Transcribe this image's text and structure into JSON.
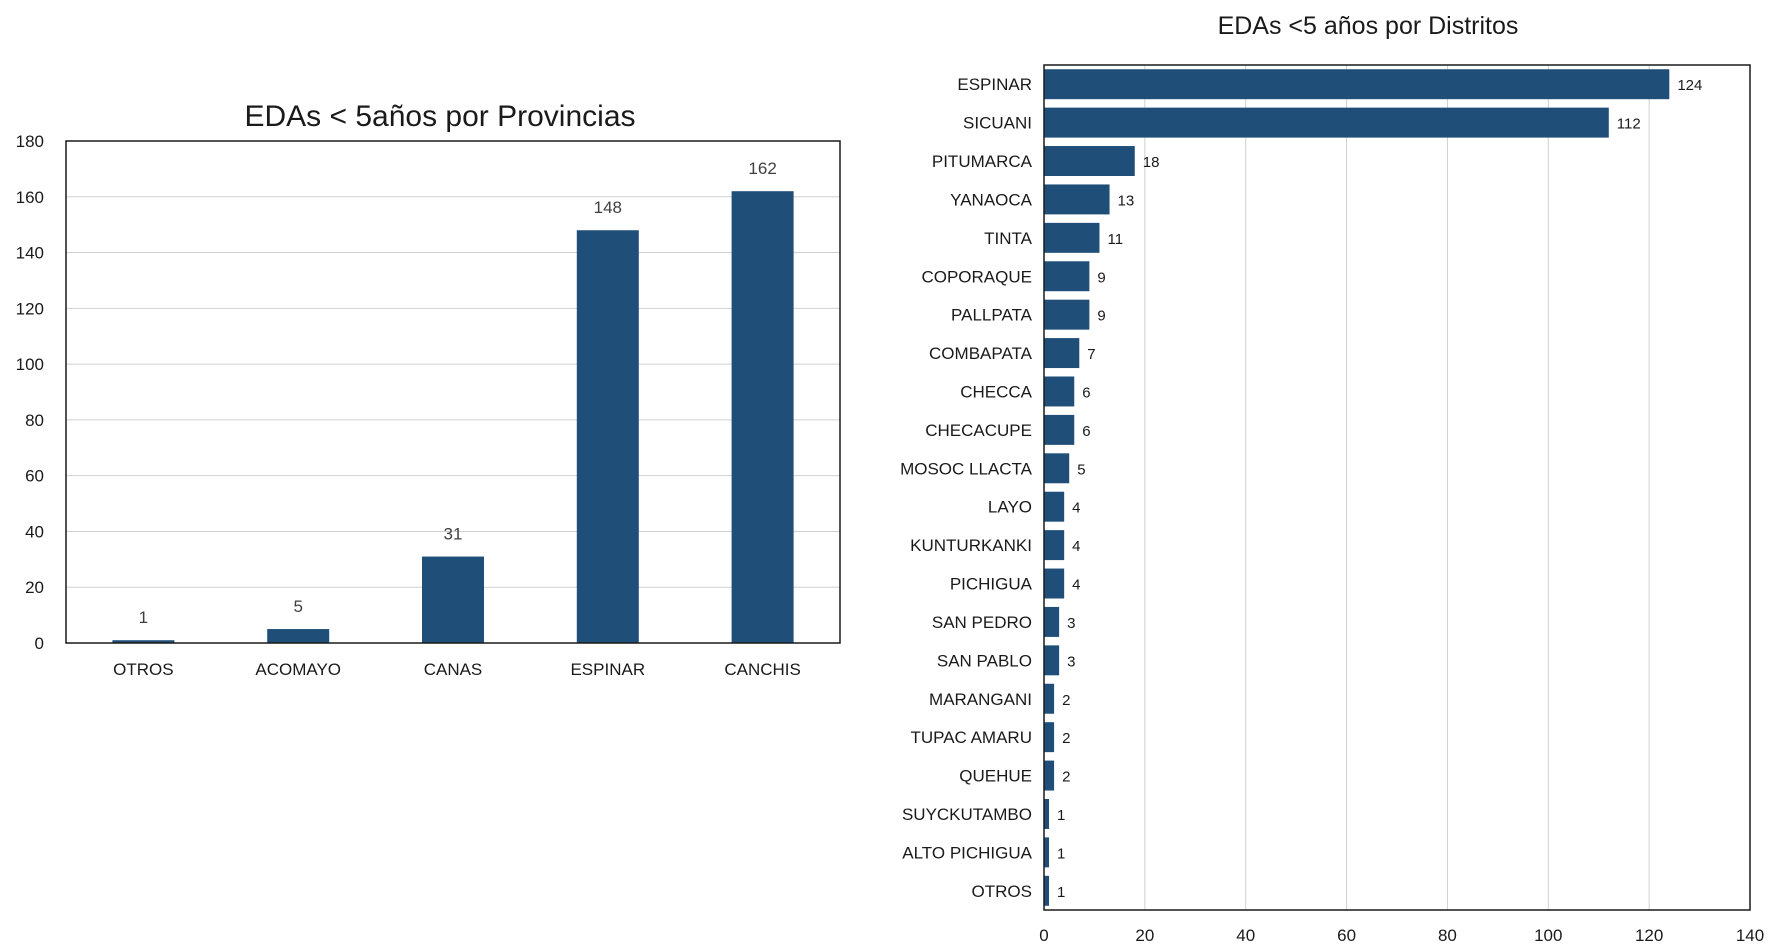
{
  "chart_data": [
    {
      "type": "bar",
      "orientation": "vertical",
      "title": "EDAs < 5años por Provincias",
      "categories": [
        "OTROS",
        "ACOMAYO",
        "CANAS",
        "ESPINAR",
        "CANCHIS"
      ],
      "values": [
        1,
        5,
        31,
        148,
        162
      ],
      "data_labels": [
        "1",
        "5",
        "31",
        "148",
        "162"
      ],
      "ylim": [
        0,
        180
      ],
      "yticks": [
        "0",
        "20",
        "40",
        "60",
        "80",
        "100",
        "120",
        "140",
        "160",
        "180"
      ],
      "grid": true,
      "color": "#1f4e79"
    },
    {
      "type": "bar",
      "orientation": "horizontal",
      "title": "EDAs <5 años  por  Distritos",
      "categories": [
        "ESPINAR",
        "SICUANI",
        "PITUMARCA",
        "YANAOCA",
        "TINTA",
        "COPORAQUE",
        "PALLPATA",
        "COMBAPATA",
        "CHECCA",
        "CHECACUPE",
        "MOSOC LLACTA",
        "LAYO",
        "KUNTURKANKI",
        "PICHIGUA",
        "SAN PEDRO",
        "SAN PABLO",
        "MARANGANI",
        "TUPAC AMARU",
        "QUEHUE",
        "SUYCKUTAMBO",
        "ALTO PICHIGUA",
        "OTROS"
      ],
      "values": [
        124,
        112,
        18,
        13,
        11,
        9,
        9,
        7,
        6,
        6,
        5,
        4,
        4,
        4,
        3,
        3,
        2,
        2,
        2,
        1,
        1,
        1
      ],
      "data_labels": [
        "124",
        "112",
        "18",
        "13",
        "11",
        "9",
        "9",
        "7",
        "6",
        "6",
        "5",
        "4",
        "4",
        "4",
        "3",
        "3",
        "2",
        "2",
        "2",
        "1",
        "1",
        "1"
      ],
      "xlim": [
        0,
        140
      ],
      "xticks": [
        "0",
        "20",
        "40",
        "60",
        "80",
        "100",
        "120",
        "140"
      ],
      "grid": true,
      "color": "#1f4e79"
    }
  ]
}
